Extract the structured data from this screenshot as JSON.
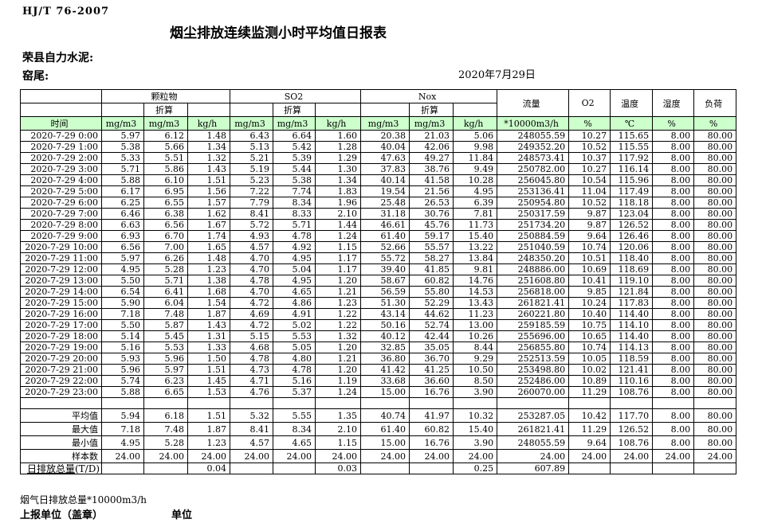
{
  "page": {
    "standard_code": "HJ/T 76-2007",
    "title": "烟尘排放连续监测小时平均值日报表",
    "company": "荣县自力水泥:",
    "location": "窑尾:",
    "date": "2020年7月29日"
  },
  "table": {
    "header": {
      "time_label": "时间",
      "converted_label": "折算",
      "groups": {
        "pm": "颗粒物",
        "so2": "SO2",
        "nox": "Nox",
        "flow": "流量",
        "o2": "O2",
        "temp": "温度",
        "humidity": "湿度",
        "load": "负荷"
      },
      "units": [
        "mg/m3",
        "mg/m3",
        "kg/h",
        "mg/m3",
        "mg/m3",
        "kg/h",
        "mg/m3",
        "mg/m3",
        "kg/h",
        "*10000m3/h",
        "%",
        "℃",
        "%",
        "%"
      ]
    },
    "rows": [
      {
        "time": "2020-7-29 0:00",
        "values": [
          "5.97",
          "6.12",
          "1.48",
          "6.43",
          "6.64",
          "1.60",
          "20.38",
          "21.03",
          "5.06",
          "248055.59",
          "10.27",
          "115.65",
          "8.00",
          "80.00"
        ]
      },
      {
        "time": "2020-7-29 1:00",
        "values": [
          "5.38",
          "5.66",
          "1.34",
          "5.13",
          "5.42",
          "1.28",
          "40.04",
          "42.06",
          "9.98",
          "249352.20",
          "10.52",
          "115.55",
          "8.00",
          "80.00"
        ]
      },
      {
        "time": "2020-7-29 2:00",
        "values": [
          "5.33",
          "5.51",
          "1.32",
          "5.21",
          "5.39",
          "1.29",
          "47.63",
          "49.27",
          "11.84",
          "248573.41",
          "10.37",
          "117.92",
          "8.00",
          "80.00"
        ]
      },
      {
        "time": "2020-7-29 3:00",
        "values": [
          "5.71",
          "5.86",
          "1.43",
          "5.19",
          "5.44",
          "1.30",
          "37.83",
          "38.76",
          "9.49",
          "250782.00",
          "10.27",
          "116.14",
          "8.00",
          "80.00"
        ]
      },
      {
        "time": "2020-7-29 4:00",
        "values": [
          "5.88",
          "6.10",
          "1.51",
          "5.23",
          "5.38",
          "1.34",
          "40.14",
          "41.58",
          "10.28",
          "256045.80",
          "10.54",
          "115.96",
          "8.00",
          "80.00"
        ]
      },
      {
        "time": "2020-7-29 5:00",
        "values": [
          "6.17",
          "6.95",
          "1.56",
          "7.22",
          "7.74",
          "1.83",
          "19.54",
          "21.56",
          "4.95",
          "253136.41",
          "11.04",
          "117.49",
          "8.00",
          "80.00"
        ]
      },
      {
        "time": "2020-7-29 6:00",
        "values": [
          "6.25",
          "6.55",
          "1.57",
          "7.79",
          "8.34",
          "1.96",
          "25.48",
          "26.53",
          "6.39",
          "250954.80",
          "10.52",
          "118.18",
          "8.00",
          "80.00"
        ]
      },
      {
        "time": "2020-7-29 7:00",
        "values": [
          "6.46",
          "6.38",
          "1.62",
          "8.41",
          "8.33",
          "2.10",
          "31.18",
          "30.76",
          "7.81",
          "250317.59",
          "9.87",
          "123.04",
          "8.00",
          "80.00"
        ]
      },
      {
        "time": "2020-7-29 8:00",
        "values": [
          "6.63",
          "6.56",
          "1.67",
          "5.72",
          "5.71",
          "1.44",
          "46.61",
          "45.76",
          "11.73",
          "251734.20",
          "9.87",
          "126.52",
          "8.00",
          "80.00"
        ]
      },
      {
        "time": "2020-7-29 9:00",
        "values": [
          "6.93",
          "6.70",
          "1.74",
          "4.93",
          "4.78",
          "1.24",
          "61.40",
          "59.17",
          "15.40",
          "250884.59",
          "9.64",
          "126.46",
          "8.00",
          "80.00"
        ]
      },
      {
        "time": "2020-7-29 10:00",
        "values": [
          "6.56",
          "7.00",
          "1.65",
          "4.57",
          "4.92",
          "1.15",
          "52.66",
          "55.57",
          "13.22",
          "251040.59",
          "10.74",
          "120.06",
          "8.00",
          "80.00"
        ]
      },
      {
        "time": "2020-7-29 11:00",
        "values": [
          "5.97",
          "6.26",
          "1.48",
          "4.70",
          "4.95",
          "1.17",
          "55.72",
          "58.27",
          "13.84",
          "248350.20",
          "10.51",
          "118.40",
          "8.00",
          "80.00"
        ]
      },
      {
        "time": "2020-7-29 12:00",
        "values": [
          "4.95",
          "5.28",
          "1.23",
          "4.70",
          "5.04",
          "1.17",
          "39.40",
          "41.85",
          "9.81",
          "248886.00",
          "10.69",
          "118.69",
          "8.00",
          "80.00"
        ]
      },
      {
        "time": "2020-7-29 13:00",
        "values": [
          "5.50",
          "5.71",
          "1.38",
          "4.78",
          "4.95",
          "1.20",
          "58.67",
          "60.82",
          "14.76",
          "251608.80",
          "10.41",
          "119.10",
          "8.00",
          "80.00"
        ]
      },
      {
        "time": "2020-7-29 14:00",
        "values": [
          "6.54",
          "6.41",
          "1.68",
          "4.70",
          "4.65",
          "1.21",
          "56.59",
          "55.80",
          "14.53",
          "256818.00",
          "9.85",
          "121.84",
          "8.00",
          "80.00"
        ]
      },
      {
        "time": "2020-7-29 15:00",
        "values": [
          "5.90",
          "6.04",
          "1.54",
          "4.72",
          "4.86",
          "1.23",
          "51.30",
          "52.29",
          "13.43",
          "261821.41",
          "10.24",
          "117.83",
          "8.00",
          "80.00"
        ]
      },
      {
        "time": "2020-7-29 16:00",
        "values": [
          "7.18",
          "7.48",
          "1.87",
          "4.69",
          "4.91",
          "1.22",
          "43.14",
          "44.62",
          "11.23",
          "260221.80",
          "10.40",
          "114.40",
          "8.00",
          "80.00"
        ]
      },
      {
        "time": "2020-7-29 17:00",
        "values": [
          "5.50",
          "5.87",
          "1.43",
          "4.72",
          "5.02",
          "1.22",
          "50.16",
          "52.74",
          "13.00",
          "259185.59",
          "10.75",
          "114.10",
          "8.00",
          "80.00"
        ]
      },
      {
        "time": "2020-7-29 18:00",
        "values": [
          "5.14",
          "5.45",
          "1.31",
          "5.15",
          "5.53",
          "1.32",
          "40.12",
          "42.44",
          "10.26",
          "255696.00",
          "10.65",
          "114.40",
          "8.00",
          "80.00"
        ]
      },
      {
        "time": "2020-7-29 19:00",
        "values": [
          "5.16",
          "5.53",
          "1.33",
          "4.68",
          "5.05",
          "1.20",
          "32.85",
          "35.05",
          "8.44",
          "256855.80",
          "10.74",
          "114.13",
          "8.00",
          "80.00"
        ]
      },
      {
        "time": "2020-7-29 20:00",
        "values": [
          "5.93",
          "5.96",
          "1.50",
          "4.78",
          "4.80",
          "1.21",
          "36.80",
          "36.70",
          "9.29",
          "252513.59",
          "10.05",
          "118.59",
          "8.00",
          "80.00"
        ]
      },
      {
        "time": "2020-7-29 21:00",
        "values": [
          "5.96",
          "5.97",
          "1.51",
          "4.73",
          "4.78",
          "1.20",
          "41.42",
          "41.25",
          "10.50",
          "253498.80",
          "10.02",
          "121.41",
          "8.00",
          "80.00"
        ]
      },
      {
        "time": "2020-7-29 22:00",
        "values": [
          "5.74",
          "6.23",
          "1.45",
          "4.71",
          "5.16",
          "1.19",
          "33.68",
          "36.60",
          "8.50",
          "252486.00",
          "10.89",
          "110.16",
          "8.00",
          "80.00"
        ]
      },
      {
        "time": "2020-7-29 23:00",
        "values": [
          "5.88",
          "6.65",
          "1.53",
          "4.76",
          "5.37",
          "1.24",
          "15.00",
          "16.76",
          "3.90",
          "260070.00",
          "11.29",
          "108.76",
          "8.00",
          "80.00"
        ]
      }
    ],
    "summary_rows": [
      {
        "label": "平均值",
        "values": [
          "5.94",
          "6.18",
          "1.51",
          "5.32",
          "5.55",
          "1.35",
          "40.74",
          "41.97",
          "10.32",
          "253287.05",
          "10.42",
          "117.70",
          "8.00",
          "80.00"
        ]
      },
      {
        "label": "最大值",
        "values": [
          "7.18",
          "7.48",
          "1.87",
          "8.41",
          "8.34",
          "2.10",
          "61.40",
          "60.82",
          "15.40",
          "261821.41",
          "11.29",
          "126.52",
          "8.00",
          "80.00"
        ]
      },
      {
        "label": "最小值",
        "values": [
          "4.95",
          "5.28",
          "1.23",
          "4.57",
          "4.65",
          "1.15",
          "15.00",
          "16.76",
          "3.90",
          "248055.59",
          "9.64",
          "108.76",
          "8.00",
          "80.00"
        ]
      },
      {
        "label": "样本数",
        "values": [
          "24.00",
          "24.00",
          "24.00",
          "24.00",
          "24.00",
          "24.00",
          "24.00",
          "24.00",
          "24.00",
          "24.00",
          "24.00",
          "24.00",
          "24.00",
          "24.00"
        ]
      }
    ],
    "total_row": {
      "label_main": "日排放总量",
      "label_suffix": "(T/D)",
      "values": [
        "",
        "",
        "0.04",
        "",
        "",
        "0.03",
        "",
        "",
        "0.25",
        "607.89",
        "",
        "",
        "",
        ""
      ]
    }
  },
  "footer": {
    "flue_total_label": "烟气日排放总量*10000m3/h",
    "report_unit_label": "上报单位（盖章）",
    "unit_label": "单位"
  },
  "colors": {
    "header_green": "#ccffcc"
  }
}
